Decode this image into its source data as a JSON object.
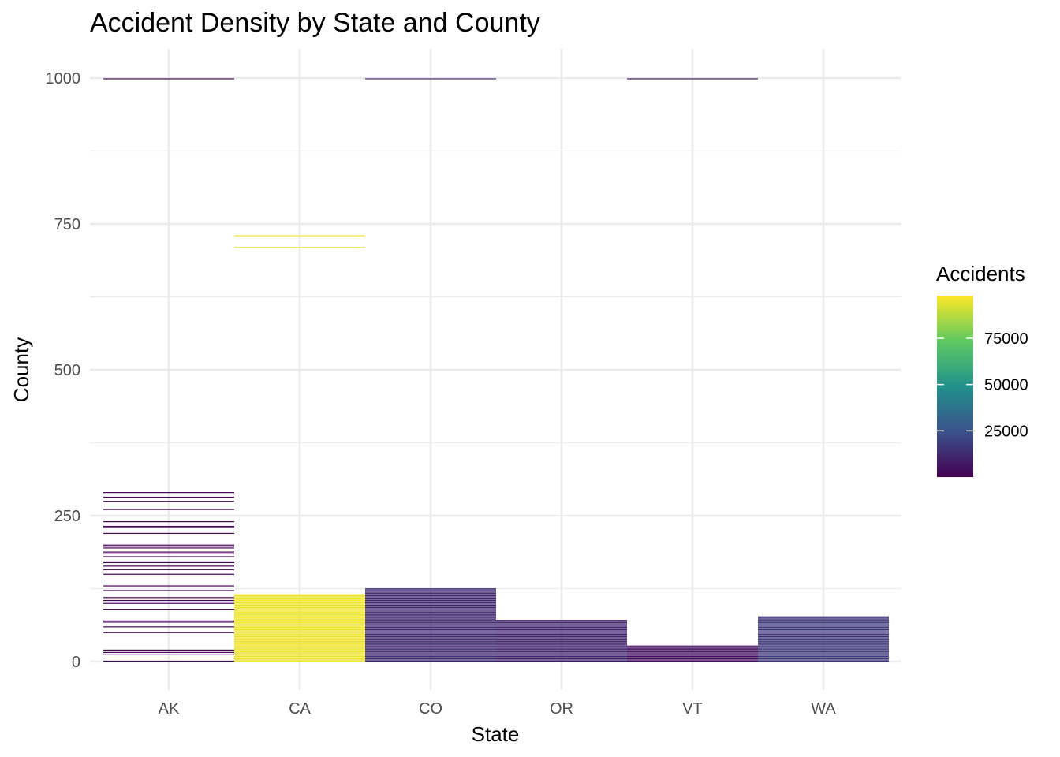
{
  "chart_data": {
    "type": "heatmap",
    "title": "Accident Density by State and County",
    "xlabel": "State",
    "ylabel": "County",
    "categories": [
      "AK",
      "CA",
      "CO",
      "OR",
      "VT",
      "WA"
    ],
    "ylim": [
      -50,
      1050
    ],
    "yticks": [
      0,
      250,
      500,
      750,
      1000
    ],
    "grid": true,
    "legend": {
      "title": "Accidents",
      "position": "right",
      "ticks": [
        25000,
        50000,
        75000
      ],
      "range": [
        0,
        98000
      ],
      "colormap": "viridis",
      "colors": [
        "#440154",
        "#3b528b",
        "#21918c",
        "#5ec962",
        "#fde725"
      ]
    },
    "series": [
      {
        "state": "AK",
        "counties": [
          1,
          13,
          16,
          20,
          50,
          60,
          68,
          70,
          90,
          100,
          105,
          110,
          122,
          130,
          150,
          158,
          164,
          170,
          180,
          185,
          188,
          195,
          198,
          200,
          220,
          230,
          232,
          240,
          261,
          275,
          282,
          290,
          999
        ],
        "accidents": [
          1500,
          1100,
          900,
          1300,
          2200,
          1800,
          1400,
          1200,
          2600,
          3100,
          1500,
          1800,
          2200,
          1300,
          1700,
          1200,
          900,
          1400,
          1600,
          1100,
          1000,
          1500,
          1200,
          2400,
          1900,
          1400,
          3500,
          1200,
          900,
          1600,
          1800,
          1500,
          2400
        ]
      },
      {
        "state": "CA",
        "counties": [
          1,
          3,
          5,
          7,
          9,
          11,
          13,
          15,
          17,
          19,
          21,
          23,
          25,
          27,
          29,
          31,
          33,
          35,
          37,
          39,
          41,
          43,
          45,
          47,
          49,
          51,
          53,
          55,
          57,
          59,
          61,
          63,
          65,
          67,
          69,
          71,
          73,
          75,
          77,
          79,
          81,
          83,
          85,
          87,
          89,
          91,
          93,
          95,
          97,
          99,
          101,
          103,
          105,
          107,
          109,
          111,
          113,
          115,
          710,
          730
        ],
        "accidents": [
          96000,
          94500,
          95200,
          97300,
          93800,
          96600,
          95100,
          94200,
          97800,
          95500,
          96200,
          93600,
          94900,
          97000,
          95800,
          96400,
          94100,
          93900,
          98000,
          95300,
          96800,
          94700,
          95600,
          97100,
          93500,
          96000,
          94400,
          95900,
          97500,
          94800,
          96300,
          95000,
          93700,
          97400,
          95400,
          96700,
          94000,
          97700,
          95200,
          96100,
          94600,
          93400,
          97200,
          95700,
          96500,
          94300,
          95100,
          97900,
          93300,
          96900,
          94500,
          95800,
          97600,
          94200,
          96200,
          95300,
          93800,
          97000,
          95000,
          96000
        ]
      },
      {
        "state": "CO",
        "counties": [
          1,
          3,
          5,
          7,
          9,
          11,
          13,
          15,
          17,
          19,
          21,
          23,
          25,
          27,
          29,
          31,
          33,
          35,
          37,
          39,
          41,
          43,
          45,
          47,
          49,
          51,
          53,
          55,
          57,
          59,
          61,
          63,
          65,
          67,
          69,
          71,
          73,
          75,
          77,
          79,
          81,
          83,
          85,
          87,
          89,
          91,
          93,
          95,
          97,
          99,
          101,
          103,
          105,
          107,
          109,
          111,
          113,
          115,
          117,
          119,
          121,
          123,
          125,
          999
        ],
        "accidents": [
          11000,
          12500,
          13800,
          9800,
          14200,
          10500,
          12900,
          11700,
          13100,
          10200,
          12200,
          14000,
          9500,
          11300,
          13600,
          12000,
          10800,
          14500,
          11500,
          12700,
          9900,
          13300,
          11100,
          12400,
          10600,
          14100,
          11900,
          12800,
          10300,
          13500,
          11200,
          12100,
          9700,
          13900,
          11600,
          12600,
          10400,
          14300,
          11800,
          12300,
          10000,
          13200,
          11400,
          12900,
          10700,
          13700,
          11000,
          12500,
          9600,
          14400,
          11300,
          12000,
          10900,
          13400,
          11700,
          12200,
          10100,
          13000,
          11500,
          12800,
          10500,
          14000,
          11900,
          12000
        ]
      },
      {
        "state": "OR",
        "counties": [
          1,
          3,
          5,
          7,
          9,
          11,
          13,
          15,
          17,
          19,
          21,
          23,
          25,
          27,
          29,
          31,
          33,
          35,
          37,
          39,
          41,
          43,
          45,
          47,
          49,
          51,
          53,
          55,
          57,
          59,
          61,
          63,
          65,
          67,
          69,
          71
        ],
        "accidents": [
          9000,
          10500,
          11800,
          8700,
          12200,
          9400,
          10900,
          11600,
          8900,
          12400,
          10200,
          9700,
          11300,
          10800,
          9200,
          12000,
          11100,
          8800,
          10400,
          11900,
          9600,
          12300,
          10100,
          9300,
          11500,
          10700,
          8600,
          12100,
          9900,
          11200,
          10300,
          9500,
          11700,
          10600,
          9100,
          12500
        ]
      },
      {
        "state": "VT",
        "counties": [
          1,
          3,
          5,
          7,
          9,
          11,
          13,
          15,
          17,
          19,
          21,
          23,
          25,
          27,
          999
        ],
        "accidents": [
          4200,
          3800,
          5100,
          4600,
          3500,
          4900,
          4100,
          5300,
          3900,
          4400,
          5000,
          3700,
          4800,
          4300,
          6000
        ]
      },
      {
        "state": "WA",
        "counties": [
          1,
          3,
          5,
          7,
          9,
          11,
          13,
          15,
          17,
          19,
          21,
          23,
          25,
          27,
          29,
          31,
          33,
          35,
          37,
          39,
          41,
          43,
          45,
          47,
          49,
          51,
          53,
          55,
          57,
          59,
          61,
          63,
          65,
          67,
          69,
          71,
          73,
          75,
          77
        ],
        "accidents": [
          15000,
          16500,
          17800,
          14200,
          18300,
          15600,
          16900,
          14800,
          17400,
          15200,
          18000,
          16100,
          14500,
          17100,
          15900,
          16700,
          14900,
          18500,
          15400,
          16300,
          17600,
          14300,
          15800,
          17000,
          16400,
          14700,
          18200,
          15100,
          16800,
          17300,
          14600,
          15700,
          18100,
          16200,
          15300,
          17700,
          14400,
          16600,
          15500
        ]
      }
    ]
  }
}
